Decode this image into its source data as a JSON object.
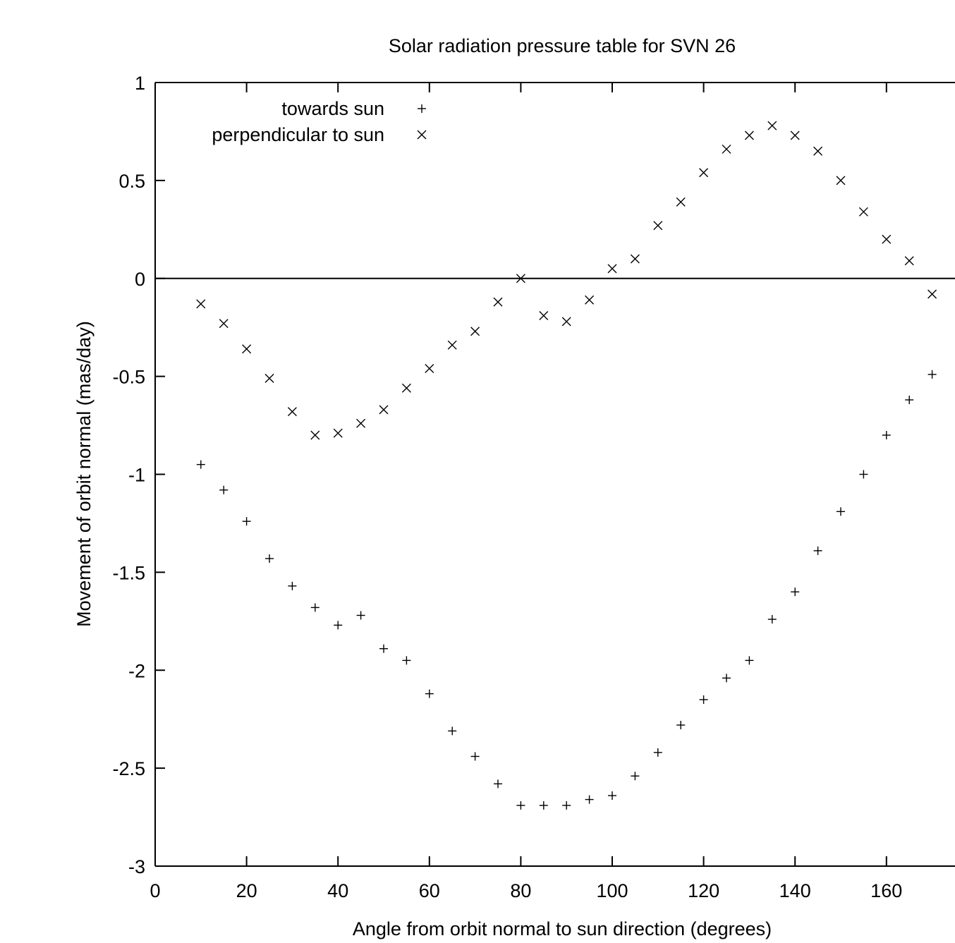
{
  "chart_data": {
    "type": "scatter",
    "title": "Solar radiation pressure table for SVN 26",
    "xlabel": "Angle from orbit normal to sun direction (degrees)",
    "ylabel": "Movement of orbit normal (mas/day)",
    "xlim": [
      0,
      175
    ],
    "ylim": [
      -3,
      1
    ],
    "x_ticks": [
      0,
      20,
      40,
      60,
      80,
      100,
      120,
      140,
      160
    ],
    "x_tick_labels": [
      "0",
      "20",
      "40",
      "60",
      "80",
      "100",
      "120",
      "140",
      "160"
    ],
    "y_ticks": [
      -3,
      -2.5,
      -2,
      -1.5,
      -1,
      -0.5,
      0,
      0.5,
      1
    ],
    "y_tick_labels": [
      "-3",
      "-2.5",
      "-2",
      "-1.5",
      "-1",
      "-0.5",
      "0",
      "0.5",
      "1"
    ],
    "zero_line": true,
    "grid": false,
    "legend_position": "top-left",
    "series": [
      {
        "name": "towards sun",
        "marker": "plus",
        "color": "#000000",
        "x": [
          10,
          15,
          20,
          25,
          30,
          35,
          40,
          45,
          50,
          55,
          60,
          65,
          70,
          75,
          80,
          85,
          90,
          95,
          100,
          105,
          110,
          115,
          120,
          125,
          130,
          135,
          140,
          145,
          150,
          155,
          160,
          165,
          170
        ],
        "y": [
          -0.95,
          -1.08,
          -1.24,
          -1.43,
          -1.57,
          -1.68,
          -1.77,
          -1.72,
          -1.89,
          -1.95,
          -2.12,
          -2.31,
          -2.44,
          -2.58,
          -2.69,
          -2.69,
          -2.69,
          -2.66,
          -2.64,
          -2.54,
          -2.42,
          -2.28,
          -2.15,
          -2.04,
          -1.95,
          -1.74,
          -1.6,
          -1.39,
          -1.19,
          -1.0,
          -0.8,
          -0.62,
          -0.49
        ]
      },
      {
        "name": "perpendicular to sun",
        "marker": "cross",
        "color": "#000000",
        "x": [
          10,
          15,
          20,
          25,
          30,
          35,
          40,
          45,
          50,
          55,
          60,
          65,
          70,
          75,
          80,
          85,
          90,
          95,
          100,
          105,
          110,
          115,
          120,
          125,
          130,
          135,
          140,
          145,
          150,
          155,
          160,
          165,
          170
        ],
        "y": [
          -0.13,
          -0.23,
          -0.36,
          -0.51,
          -0.68,
          -0.8,
          -0.79,
          -0.74,
          -0.67,
          -0.56,
          -0.46,
          -0.34,
          -0.27,
          -0.12,
          0.0,
          -0.19,
          -0.22,
          -0.11,
          0.05,
          0.1,
          0.27,
          0.39,
          0.54,
          0.66,
          0.73,
          0.78,
          0.73,
          0.65,
          0.5,
          0.34,
          0.2,
          0.09,
          -0.08
        ]
      }
    ]
  }
}
